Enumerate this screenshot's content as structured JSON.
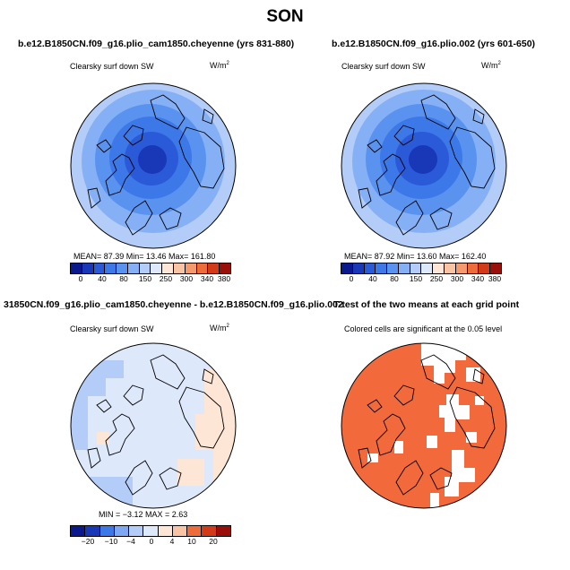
{
  "title": "SON",
  "panels": [
    {
      "title": "b.e12.B1850CN.f09_g16.plio_cam1850.cheyenne (yrs 831-880)",
      "var_label": "Clearsky surf down SW",
      "units": "W/m",
      "units_exp": "2",
      "stats": "MEAN=  87.39   Min=   13.46   Max=  161.80",
      "colorbar_labels": [
        "0",
        "40",
        "80",
        "150",
        "250",
        "300",
        "340",
        "380"
      ]
    },
    {
      "title": "b.e12.B1850CN.f09_g16.plio.002 (yrs 601-650)",
      "var_label": "Clearsky surf down SW",
      "units": "W/m",
      "units_exp": "2",
      "stats": "MEAN=  87.92   Min=   13.60   Max=  162.40",
      "colorbar_labels": [
        "0",
        "40",
        "80",
        "150",
        "250",
        "300",
        "340",
        "380"
      ]
    },
    {
      "title": "31850CN.f09_g16.plio_cam1850.cheyenne - b.e12.B1850CN.f09_g16.plio.002",
      "var_label": "Clearsky surf down SW",
      "units": "W/m",
      "units_exp": "2",
      "stats": "MIN = −3.12  MAX =    2.63",
      "colorbar_labels": [
        "−20",
        "−10",
        "−4",
        "0",
        "4",
        "10",
        "20"
      ]
    },
    {
      "title": "T-test of the two means at each grid point",
      "var_label": "Colored cells are significant at the 0.05 level"
    }
  ],
  "colors": {
    "abs_scale": [
      "#0a1a8c",
      "#1838b8",
      "#2a5ad8",
      "#3c78e8",
      "#5a92f0",
      "#86b0f6",
      "#b4cdf8",
      "#dde8fb",
      "#fde6d6",
      "#f9c4a4",
      "#f59a6c",
      "#ee6c3a",
      "#d23a18",
      "#9a0f0a"
    ],
    "diff_scale": [
      "#0a1a8c",
      "#1838b8",
      "#3c78e8",
      "#7ea8f4",
      "#b4cdf8",
      "#dde8fb",
      "#fde6d6",
      "#f9c4a4",
      "#ee6c3a",
      "#d23a18",
      "#9a0f0a"
    ],
    "ttest_fill": "#f26a3c"
  }
}
